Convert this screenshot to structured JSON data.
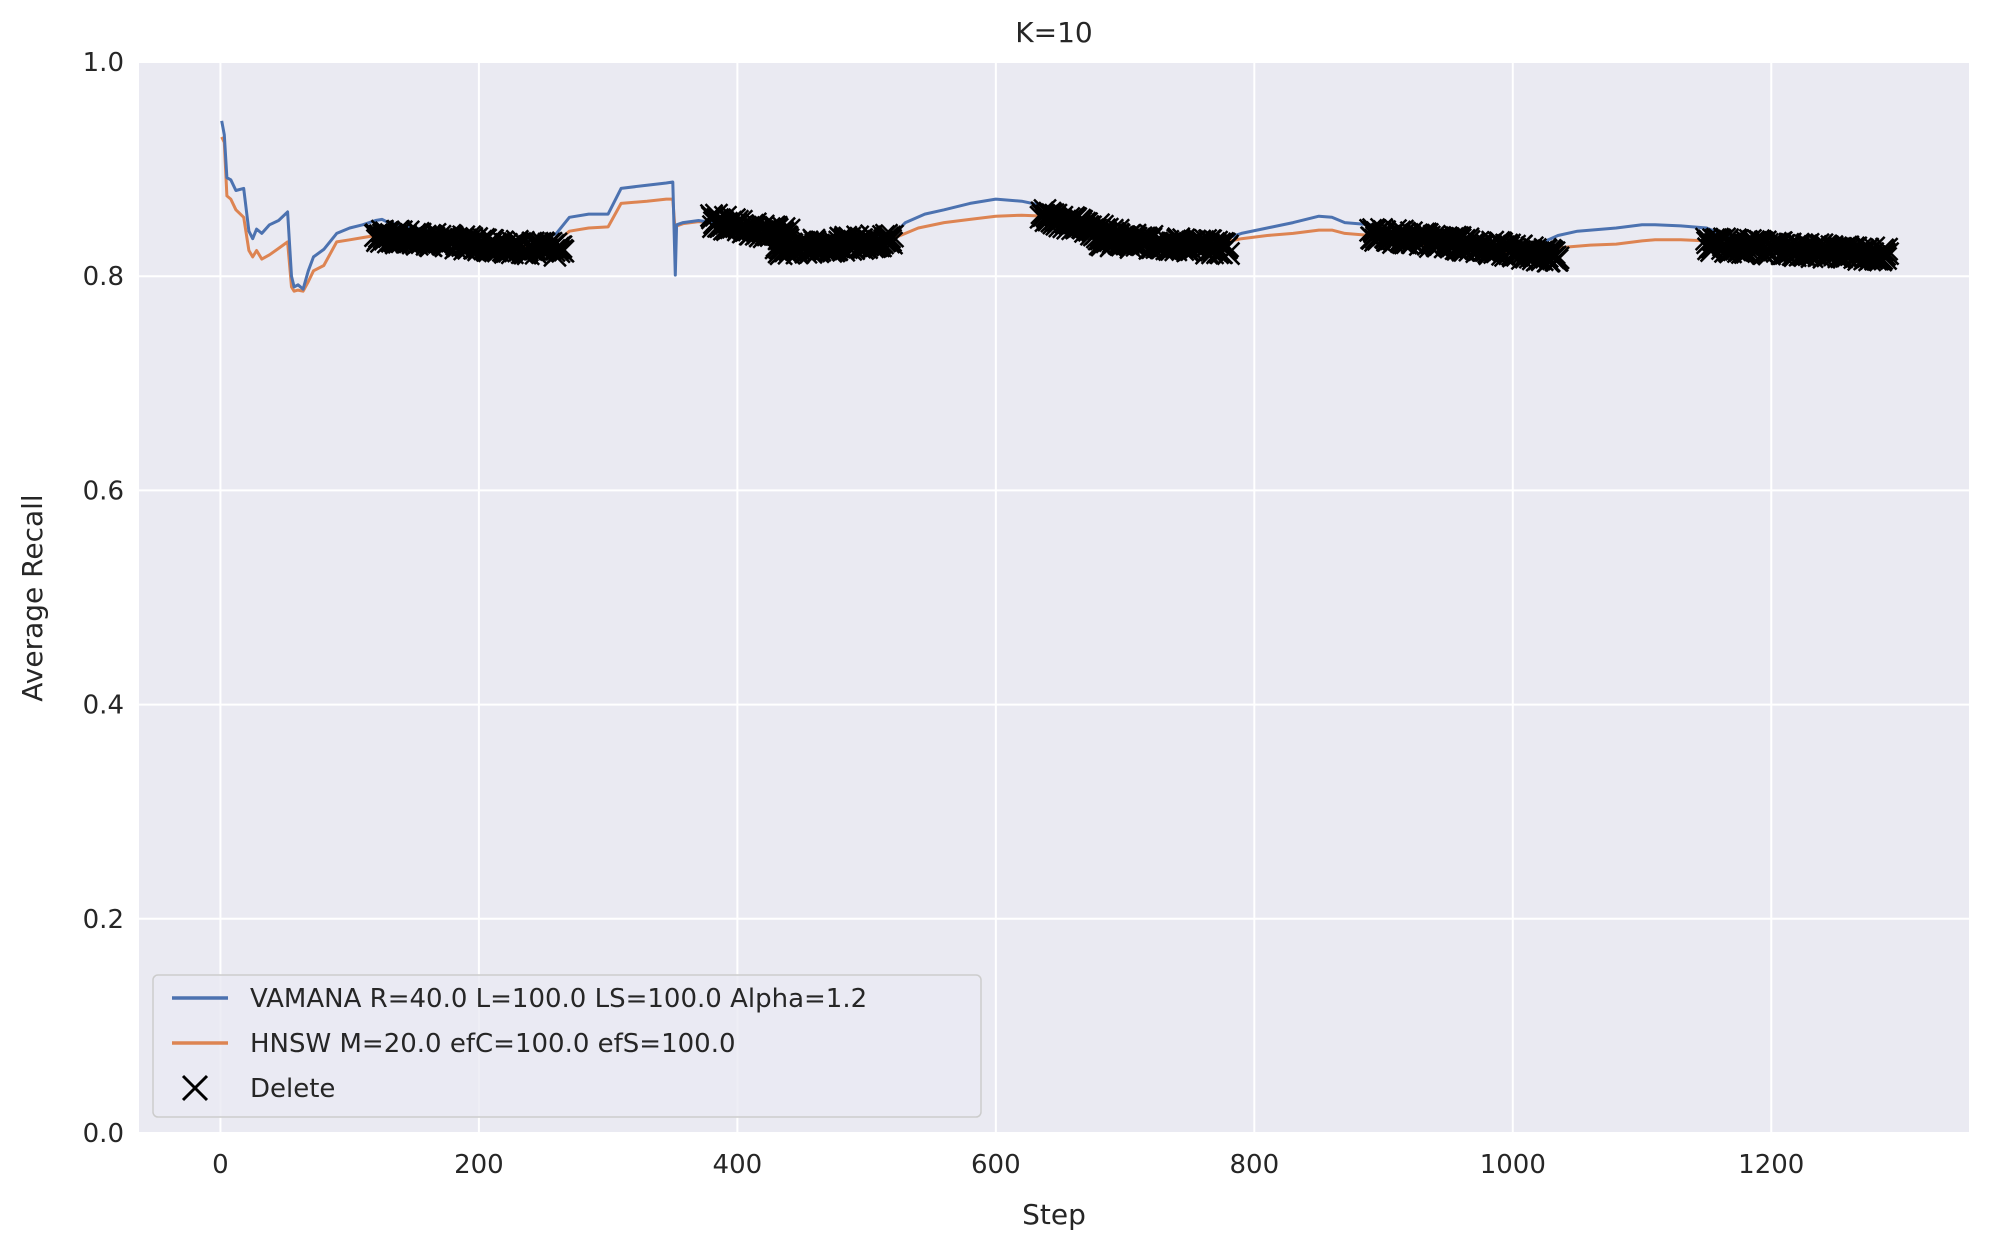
{
  "chart_data": {
    "type": "line",
    "title": "K=10",
    "xlabel": "Step",
    "ylabel": "Average Recall",
    "xlim": [
      -63,
      1353
    ],
    "ylim": [
      0.0,
      1.0
    ],
    "xticks": [
      0,
      200,
      400,
      600,
      800,
      1000,
      1200
    ],
    "yticks": [
      0.0,
      0.2,
      0.4,
      0.6,
      0.8,
      1.0
    ],
    "xtick_labels": [
      "0",
      "200",
      "400",
      "600",
      "800",
      "1000",
      "1200"
    ],
    "ytick_labels": [
      "0.0",
      "0.2",
      "0.4",
      "0.6",
      "0.8",
      "1.0"
    ],
    "grid": true,
    "legend_position": "bottom-left",
    "background_color": "#EAEAF2",
    "series": [
      {
        "name": "VAMANA R=40.0 L=100.0 LS=100.0 Alpha=1.2",
        "color": "#4C72B0",
        "x": [
          1,
          3,
          5,
          8,
          12,
          18,
          22,
          25,
          28,
          32,
          38,
          45,
          52,
          55,
          57,
          60,
          64,
          68,
          72,
          80,
          90,
          100,
          110,
          120,
          125,
          130,
          150,
          180,
          200,
          230,
          250,
          260,
          270,
          285,
          300,
          310,
          330,
          345,
          350,
          352,
          353,
          358,
          370,
          380,
          390,
          400,
          420,
          440,
          460,
          480,
          500,
          520,
          530,
          545,
          560,
          580,
          600,
          620,
          640,
          660,
          680,
          700,
          720,
          750,
          770,
          790,
          810,
          830,
          850,
          860,
          870,
          890,
          910,
          930,
          960,
          990,
          1020,
          1035,
          1050,
          1080,
          1100,
          1110,
          1130,
          1150,
          1170,
          1200,
          1230,
          1260,
          1285
        ],
        "values": [
          0.945,
          0.932,
          0.892,
          0.89,
          0.88,
          0.882,
          0.842,
          0.835,
          0.844,
          0.84,
          0.848,
          0.852,
          0.86,
          0.8,
          0.79,
          0.792,
          0.788,
          0.805,
          0.818,
          0.825,
          0.84,
          0.845,
          0.848,
          0.852,
          0.853,
          0.85,
          0.845,
          0.838,
          0.835,
          0.833,
          0.834,
          0.84,
          0.855,
          0.858,
          0.858,
          0.882,
          0.885,
          0.887,
          0.888,
          0.801,
          0.848,
          0.85,
          0.852,
          0.85,
          0.848,
          0.845,
          0.835,
          0.83,
          0.832,
          0.835,
          0.835,
          0.838,
          0.85,
          0.858,
          0.862,
          0.868,
          0.872,
          0.87,
          0.865,
          0.855,
          0.845,
          0.838,
          0.834,
          0.83,
          0.832,
          0.84,
          0.845,
          0.85,
          0.856,
          0.855,
          0.85,
          0.848,
          0.84,
          0.835,
          0.83,
          0.825,
          0.83,
          0.838,
          0.842,
          0.845,
          0.848,
          0.848,
          0.847,
          0.845,
          0.835,
          0.83,
          0.828,
          0.824,
          0.822
        ]
      },
      {
        "name": "HNSW M=20.0 efC=100.0 efS=100.0",
        "color": "#DD8452",
        "x": [
          1,
          3,
          5,
          8,
          12,
          18,
          22,
          25,
          28,
          32,
          38,
          45,
          52,
          55,
          57,
          60,
          64,
          68,
          72,
          80,
          90,
          100,
          110,
          120,
          150,
          180,
          200,
          230,
          250,
          260,
          270,
          285,
          300,
          310,
          330,
          345,
          350,
          352,
          353,
          358,
          370,
          380,
          400,
          420,
          440,
          460,
          480,
          500,
          520,
          540,
          560,
          580,
          600,
          620,
          640,
          660,
          680,
          700,
          720,
          750,
          770,
          790,
          810,
          830,
          850,
          860,
          870,
          890,
          910,
          930,
          960,
          990,
          1020,
          1040,
          1060,
          1080,
          1100,
          1110,
          1130,
          1150,
          1170,
          1200,
          1230,
          1260,
          1285
        ],
        "values": [
          0.93,
          0.925,
          0.875,
          0.872,
          0.862,
          0.855,
          0.824,
          0.818,
          0.824,
          0.816,
          0.82,
          0.826,
          0.832,
          0.79,
          0.786,
          0.787,
          0.786,
          0.795,
          0.805,
          0.81,
          0.832,
          0.834,
          0.836,
          0.838,
          0.836,
          0.832,
          0.83,
          0.828,
          0.829,
          0.832,
          0.842,
          0.845,
          0.846,
          0.868,
          0.87,
          0.872,
          0.872,
          0.84,
          0.847,
          0.849,
          0.851,
          0.85,
          0.842,
          0.832,
          0.828,
          0.83,
          0.832,
          0.833,
          0.835,
          0.845,
          0.85,
          0.853,
          0.856,
          0.857,
          0.856,
          0.852,
          0.842,
          0.835,
          0.83,
          0.828,
          0.83,
          0.835,
          0.838,
          0.84,
          0.843,
          0.843,
          0.84,
          0.838,
          0.834,
          0.83,
          0.826,
          0.822,
          0.825,
          0.827,
          0.829,
          0.83,
          0.833,
          0.834,
          0.834,
          0.833,
          0.828,
          0.825,
          0.822,
          0.82,
          0.818
        ]
      },
      {
        "name": "Delete",
        "color": "#000000",
        "marker": "x",
        "segments": [
          {
            "x_start": 120,
            "x_end": 265,
            "y_start": 0.838,
            "y_end": 0.824
          },
          {
            "x_start": 380,
            "x_end": 440,
            "y_start": 0.852,
            "y_end": 0.838
          },
          {
            "x_start": 430,
            "x_end": 520,
            "y_start": 0.825,
            "y_end": 0.834
          },
          {
            "x_start": 635,
            "x_end": 700,
            "y_start": 0.858,
            "y_end": 0.835
          },
          {
            "x_start": 680,
            "x_end": 780,
            "y_start": 0.835,
            "y_end": 0.826
          },
          {
            "x_start": 890,
            "x_end": 960,
            "y_start": 0.84,
            "y_end": 0.83
          },
          {
            "x_start": 950,
            "x_end": 1035,
            "y_start": 0.832,
            "y_end": 0.818
          },
          {
            "x_start": 1150,
            "x_end": 1290,
            "y_start": 0.83,
            "y_end": 0.82
          }
        ]
      }
    ]
  }
}
